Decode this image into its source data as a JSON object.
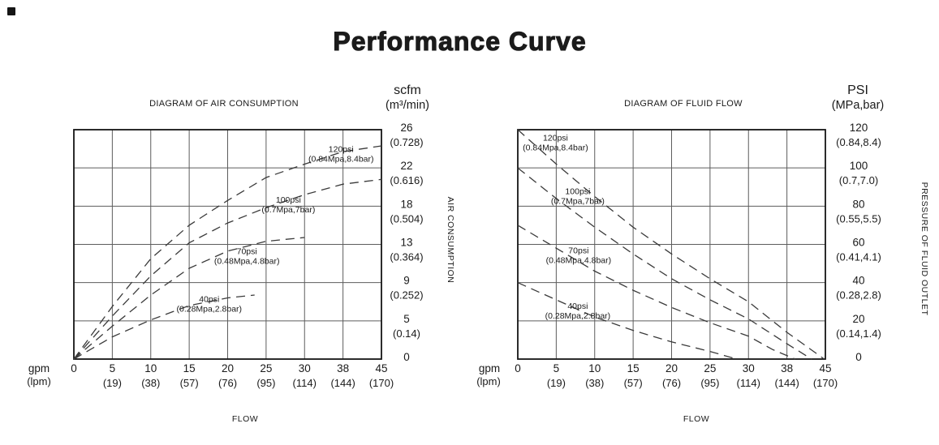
{
  "page": {
    "title": "Performance Curve"
  },
  "chart_data": [
    {
      "id": "air-consumption",
      "type": "line",
      "title": "DIAGRAM OF AIR CONSUMPTION",
      "x_axis": {
        "unit_main": "gpm",
        "unit_sub": "(lpm)",
        "label": "FLOW",
        "tick_values": [
          0,
          5,
          10,
          15,
          20,
          25,
          30,
          38,
          45
        ],
        "ticks_main": [
          "0",
          "5",
          "10",
          "15",
          "20",
          "25",
          "30",
          "38",
          "45"
        ],
        "ticks_sub": [
          "",
          "(19)",
          "(38)",
          "(57)",
          "(76)",
          "(95)",
          "(114)",
          "(144)",
          "(170)"
        ],
        "xlim": [
          0,
          45
        ]
      },
      "y_axis": {
        "unit_main": "scfm",
        "unit_sub": "(m³/min)",
        "label": "AIR CONSUMPTION",
        "tick_values": [
          26,
          22,
          18,
          13,
          9,
          5,
          0
        ],
        "ticks_main": [
          "26",
          "22",
          "18",
          "13",
          "9",
          "5",
          "0"
        ],
        "ticks_sub": [
          "(0.728)",
          "(0.616)",
          "(0.504)",
          "(0.364)",
          "(0.252)",
          "(0.14)",
          ""
        ],
        "ylim": [
          0,
          26
        ]
      },
      "grid": true,
      "line_style": "dashed",
      "series": [
        {
          "name": "120psi",
          "sub": "(0.84Mpa,8.4bar)",
          "label_at": [
            37.6,
            23.5
          ],
          "points": [
            [
              0,
              0
            ],
            [
              5,
              6.5
            ],
            [
              10,
              11.5
            ],
            [
              15,
              15.5
            ],
            [
              20,
              18.6
            ],
            [
              25,
              21.0
            ],
            [
              30,
              22.4
            ],
            [
              38,
              23.7
            ],
            [
              45,
              24.3
            ]
          ]
        },
        {
          "name": "100psi",
          "sub": "(0.7Mpa,7bar)",
          "label_at": [
            27.9,
            18.2
          ],
          "points": [
            [
              0,
              0
            ],
            [
              5,
              5.5
            ],
            [
              10,
              9.7
            ],
            [
              15,
              13.2
            ],
            [
              20,
              15.8
            ],
            [
              25,
              17.8
            ],
            [
              30,
              19.2
            ],
            [
              38,
              20.3
            ],
            [
              45,
              20.8
            ]
          ]
        },
        {
          "name": "70psi",
          "sub": "(0.48Mpa,4.8bar)",
          "label_at": [
            22.5,
            11.8
          ],
          "points": [
            [
              0,
              0
            ],
            [
              5,
              4.3
            ],
            [
              10,
              7.7
            ],
            [
              15,
              10.5
            ],
            [
              20,
              12.3
            ],
            [
              25,
              13.4
            ],
            [
              30,
              13.9
            ]
          ]
        },
        {
          "name": "40psi",
          "sub": "(0.28Mpa,2.8bar)",
          "label_at": [
            17.6,
            6.8
          ],
          "points": [
            [
              0,
              0
            ],
            [
              5,
              2.9
            ],
            [
              10,
              5.1
            ],
            [
              15,
              6.6
            ],
            [
              20,
              7.4
            ],
            [
              23.5,
              7.7
            ]
          ]
        }
      ]
    },
    {
      "id": "fluid-flow",
      "type": "line",
      "title": "DIAGRAM OF FLUID FLOW",
      "x_axis": {
        "unit_main": "gpm",
        "unit_sub": "(lpm)",
        "label": "FLOW",
        "tick_values": [
          0,
          5,
          10,
          15,
          20,
          25,
          30,
          38,
          45
        ],
        "ticks_main": [
          "0",
          "5",
          "10",
          "15",
          "20",
          "25",
          "30",
          "38",
          "45"
        ],
        "ticks_sub": [
          "",
          "(19)",
          "(38)",
          "(57)",
          "(76)",
          "(95)",
          "(114)",
          "(144)",
          "(170)"
        ],
        "xlim": [
          0,
          45
        ]
      },
      "y_axis": {
        "unit_main": "PSI",
        "unit_sub": "(MPa,bar)",
        "label": "PRESSURE OF FLUID OUTLET",
        "tick_values": [
          120,
          100,
          80,
          60,
          40,
          20,
          0
        ],
        "ticks_main": [
          "120",
          "100",
          "80",
          "60",
          "40",
          "20",
          "0"
        ],
        "ticks_sub": [
          "(0.84,8.4)",
          "(0.7,7.0)",
          "(0.55,5.5)",
          "(0.41,4.1)",
          "(0.28,2.8)",
          "(0.14,1.4)",
          ""
        ],
        "ylim": [
          0,
          120
        ]
      },
      "grid": true,
      "line_style": "dashed",
      "series": [
        {
          "name": "120psi",
          "sub": "(0.84Mpa,8.4bar)",
          "label_at": [
            4.9,
            113.5
          ],
          "points": [
            [
              0,
              120
            ],
            [
              5,
              102
            ],
            [
              10,
              85
            ],
            [
              15,
              69
            ],
            [
              20,
              55
            ],
            [
              25,
              42
            ],
            [
              30,
              30
            ],
            [
              38,
              14
            ],
            [
              44.8,
              0
            ]
          ]
        },
        {
          "name": "100psi",
          "sub": "(0.7Mpa,7bar)",
          "label_at": [
            7.8,
            85.5
          ],
          "points": [
            [
              0,
              100
            ],
            [
              5,
              84
            ],
            [
              10,
              69
            ],
            [
              15,
              55
            ],
            [
              20,
              42
            ],
            [
              25,
              31
            ],
            [
              30,
              21
            ],
            [
              38,
              8
            ],
            [
              42.5,
              0
            ]
          ]
        },
        {
          "name": "70psi",
          "sub": "(0.48Mpa,4.8bar)",
          "label_at": [
            7.9,
            54.5
          ],
          "points": [
            [
              0,
              70
            ],
            [
              5,
              58
            ],
            [
              10,
              46
            ],
            [
              15,
              36
            ],
            [
              20,
              27
            ],
            [
              25,
              19
            ],
            [
              30,
              12
            ],
            [
              35,
              5
            ],
            [
              39.5,
              0
            ]
          ]
        },
        {
          "name": "40psi",
          "sub": "(0.28Mpa,2.8bar)",
          "label_at": [
            7.8,
            25.5
          ],
          "points": [
            [
              0,
              40
            ],
            [
              5,
              31
            ],
            [
              10,
              22
            ],
            [
              15,
              15
            ],
            [
              20,
              9
            ],
            [
              25,
              4
            ],
            [
              28.5,
              0
            ]
          ]
        }
      ]
    }
  ]
}
